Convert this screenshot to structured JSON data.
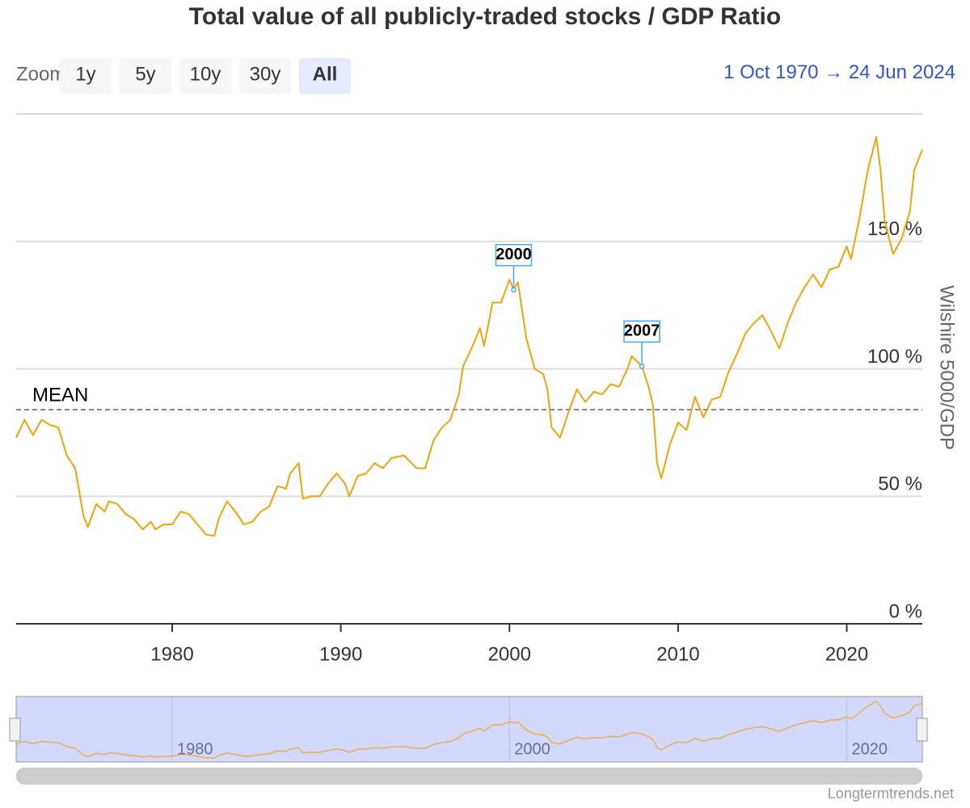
{
  "chart_data": {
    "type": "line",
    "title": "Total value of all publicly-traded stocks / GDP Ratio",
    "zoom_label": "Zoom",
    "zoom_buttons": [
      "1y",
      "5y",
      "10y",
      "30y",
      "All"
    ],
    "selected_button": 4,
    "range_start": "1 Oct 1970",
    "range_separator": "→",
    "range_end": "24 Jun 2024",
    "y_axis_title": "Wilshire 5000/GDP",
    "credit": "Longtermtrends.net",
    "color": "#f0a30a",
    "xlim": [
      1970.75,
      2024.48
    ],
    "xticks": [
      1980,
      1990,
      2000,
      2010,
      2020
    ],
    "navigator_xticks": [
      1980,
      2000,
      2020
    ],
    "ylim": [
      0,
      200
    ],
    "yticks": [
      {
        "value": 0,
        "label": "0 %"
      },
      {
        "value": 50,
        "label": "50 %"
      },
      {
        "value": 100,
        "label": "100 %"
      },
      {
        "value": 150,
        "label": "150 %"
      }
    ],
    "grid": true,
    "mean": {
      "label": "MEAN",
      "value": 84
    },
    "annotations": [
      {
        "label": "2000",
        "x": 2000.25,
        "y": 131
      },
      {
        "label": "2007",
        "x": 2007.85,
        "y": 101
      }
    ],
    "x": [
      1970.75,
      1971.25,
      1971.75,
      1972.25,
      1972.75,
      1973.25,
      1973.75,
      1974.25,
      1974.75,
      1975.0,
      1975.5,
      1976.0,
      1976.25,
      1976.75,
      1977.25,
      1977.75,
      1978.25,
      1978.75,
      1979.0,
      1979.5,
      1980.0,
      1980.5,
      1981.0,
      1981.5,
      1982.0,
      1982.5,
      1982.75,
      1983.25,
      1983.75,
      1984.25,
      1984.75,
      1985.25,
      1985.75,
      1986.25,
      1986.75,
      1987.0,
      1987.5,
      1987.75,
      1988.25,
      1988.75,
      1989.25,
      1989.75,
      1990.25,
      1990.5,
      1991.0,
      1991.5,
      1992.0,
      1992.5,
      1993.0,
      1993.75,
      1994.5,
      1995.0,
      1995.5,
      1996.0,
      1996.5,
      1997.0,
      1997.25,
      1997.75,
      1998.25,
      1998.5,
      1999.0,
      1999.5,
      2000.0,
      2000.25,
      2000.5,
      2001.0,
      2001.5,
      2002.0,
      2002.25,
      2002.5,
      2003.0,
      2003.5,
      2004.0,
      2004.5,
      2005.0,
      2005.5,
      2006.0,
      2006.5,
      2007.0,
      2007.25,
      2007.85,
      2008.25,
      2008.5,
      2008.75,
      2009.0,
      2009.5,
      2010.0,
      2010.5,
      2011.0,
      2011.5,
      2012.0,
      2012.5,
      2013.0,
      2013.5,
      2014.0,
      2014.5,
      2015.0,
      2015.5,
      2016.0,
      2016.5,
      2017.0,
      2017.5,
      2018.0,
      2018.5,
      2019.0,
      2019.5,
      2020.0,
      2020.25,
      2020.75,
      2021.25,
      2021.75,
      2022.0,
      2022.25,
      2022.75,
      2023.25,
      2023.75,
      2024.0,
      2024.48
    ],
    "values": [
      73,
      80,
      74,
      80,
      78,
      77,
      66,
      61,
      42,
      38,
      47,
      44,
      48,
      47,
      43,
      41,
      37,
      40,
      37,
      39,
      39,
      44,
      43,
      39,
      35,
      34.5,
      41,
      48,
      44,
      39,
      40,
      44,
      46,
      54,
      53,
      59,
      63,
      49,
      50,
      50,
      55,
      59,
      55,
      50,
      58,
      59,
      63,
      61,
      65,
      66,
      61,
      61,
      72,
      77,
      80,
      90,
      101,
      108,
      116,
      109,
      126,
      126,
      135,
      131,
      134,
      112,
      100,
      98,
      92,
      77,
      73,
      83,
      92,
      87,
      91,
      90,
      94,
      93,
      100,
      105,
      101,
      93,
      86,
      63,
      57,
      70,
      79,
      76,
      89,
      81,
      88,
      89,
      99,
      106,
      114,
      118,
      121,
      115,
      108,
      118,
      126,
      132,
      137,
      132,
      139,
      140,
      148,
      143,
      159,
      178,
      191,
      178,
      158,
      145,
      151,
      162,
      178,
      186
    ]
  }
}
